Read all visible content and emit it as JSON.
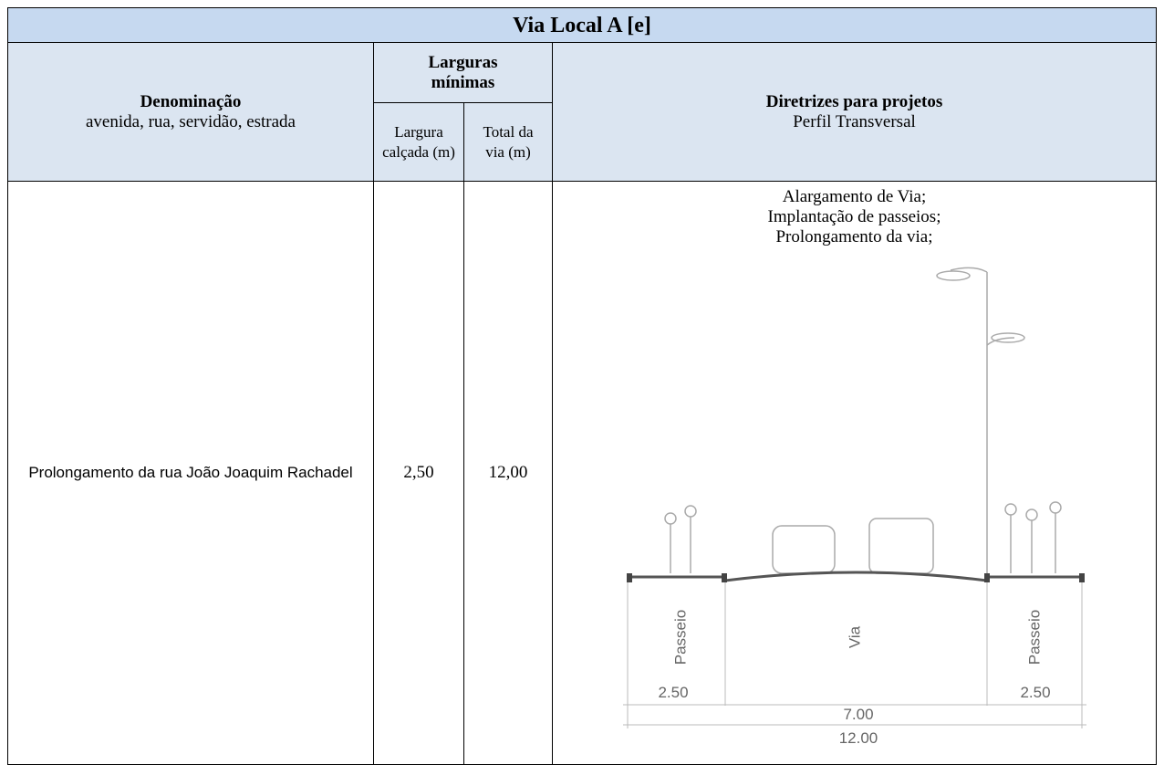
{
  "header": {
    "title": "Via Local A [e]"
  },
  "table": {
    "columns": {
      "name": {
        "title": "Denominação",
        "subtitle": "avenida, rua, servidão, estrada"
      },
      "widths": {
        "title": "Larguras mínimas",
        "sidewalk": "Largura calçada (m)",
        "total": "Total da via (m)"
      },
      "guidelines": {
        "title": "Diretrizes para projetos",
        "subtitle": "Perfil Transversal"
      }
    },
    "rows": [
      {
        "name": "Prolongamento da rua João Joaquim Rachadel",
        "sidewalk": "2,50",
        "total": "12,00",
        "guidelines": [
          "Alargamento de Via;",
          "Implantação de passeios;",
          "Prolongamento da via;"
        ]
      }
    ]
  },
  "cross_section": {
    "labels": [
      "Passeio",
      "Via",
      "Passeio"
    ],
    "dimensions": [
      "2.50",
      "7.00",
      "2.50"
    ],
    "total": "12.00"
  }
}
